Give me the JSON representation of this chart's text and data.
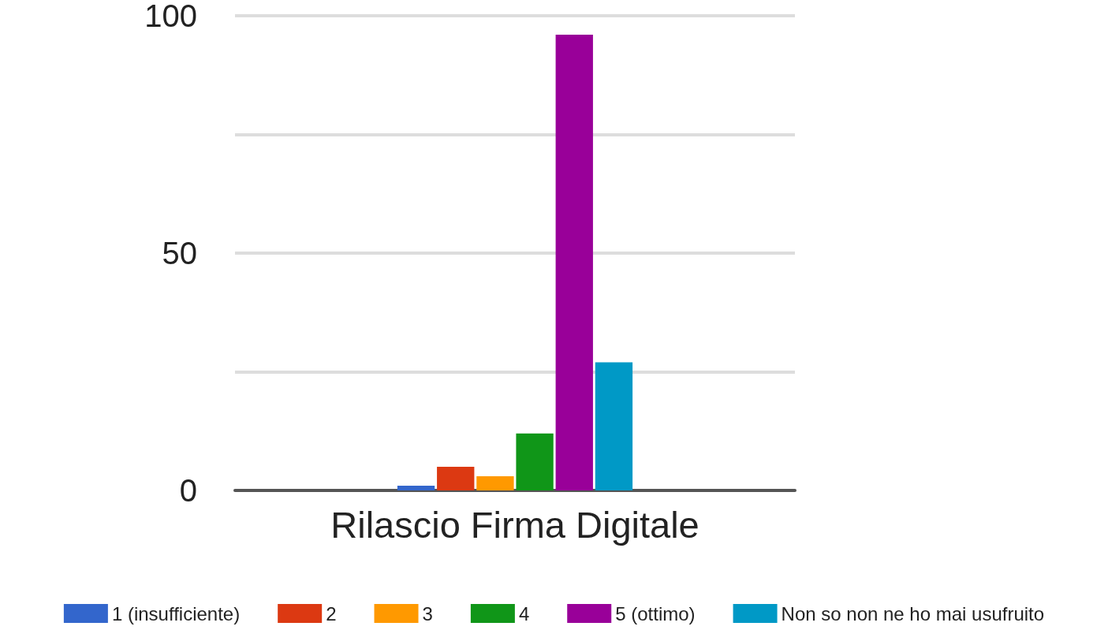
{
  "chart_data": {
    "type": "bar",
    "categories": [
      "Rilascio Firma Digitale"
    ],
    "series": [
      {
        "name": "1 (insufficiente)",
        "color": "#3366cc",
        "values": [
          1
        ]
      },
      {
        "name": "2",
        "color": "#dc3912",
        "values": [
          5
        ]
      },
      {
        "name": "3",
        "color": "#ff9900",
        "values": [
          3
        ]
      },
      {
        "name": "4",
        "color": "#109618",
        "values": [
          12
        ]
      },
      {
        "name": "5 (ottimo)",
        "color": "#990099",
        "values": [
          96
        ]
      },
      {
        "name": "Non so non ne ho mai usufruito",
        "color": "#0099c6",
        "values": [
          27
        ]
      }
    ],
    "ylim": [
      0,
      100
    ],
    "yticks": [
      0,
      {
        "value": 25,
        "label": null
      },
      50,
      {
        "value": 75,
        "label": null
      },
      100
    ],
    "grid": "y",
    "legend": "bottom"
  }
}
